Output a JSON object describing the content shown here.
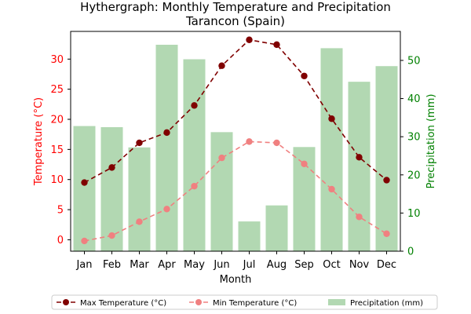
{
  "chart_data": {
    "type": "bar",
    "title": "Hythergraph: Monthly Temperature and Precipitation",
    "subtitle": "Tarancon (Spain)",
    "xlabel": "Month",
    "ylabel_left": "Temperature (°C)",
    "ylabel_right": "Precipitation (mm)",
    "categories": [
      "Jan",
      "Feb",
      "Mar",
      "Apr",
      "May",
      "Jun",
      "Jul",
      "Aug",
      "Sep",
      "Oct",
      "Nov",
      "Dec"
    ],
    "ylim_left": [
      -1.9,
      34.6
    ],
    "yticks_left": [
      0,
      5,
      10,
      15,
      20,
      25,
      30
    ],
    "ylim_right": [
      0,
      57.6
    ],
    "yticks_right": [
      0,
      10,
      20,
      30,
      40,
      50
    ],
    "series": [
      {
        "name": "Max Temperature (°C)",
        "axis": "left",
        "kind": "line",
        "color": "#800000",
        "dash": "6,4",
        "values": [
          9.5,
          12.0,
          16.1,
          17.8,
          22.3,
          28.9,
          33.2,
          32.4,
          27.2,
          20.1,
          13.7,
          9.9
        ]
      },
      {
        "name": "Min Temperature (°C)",
        "axis": "left",
        "kind": "line",
        "color": "#f08080",
        "dash": "6,4",
        "values": [
          -0.2,
          0.7,
          3.0,
          5.1,
          8.9,
          13.6,
          16.3,
          16.1,
          12.6,
          8.4,
          3.8,
          1.0
        ]
      },
      {
        "name": "Precipitation (mm)",
        "axis": "right",
        "kind": "bar",
        "color": "#b2d8b2",
        "values": [
          32.8,
          32.5,
          27.2,
          54.1,
          50.3,
          31.2,
          7.8,
          12.0,
          27.3,
          53.2,
          44.4,
          48.5
        ]
      }
    ],
    "legend_position": "bottom",
    "grid": false
  },
  "colors": {
    "left_axis": "#ff0000",
    "right_axis": "#008000",
    "text": "#000000"
  }
}
